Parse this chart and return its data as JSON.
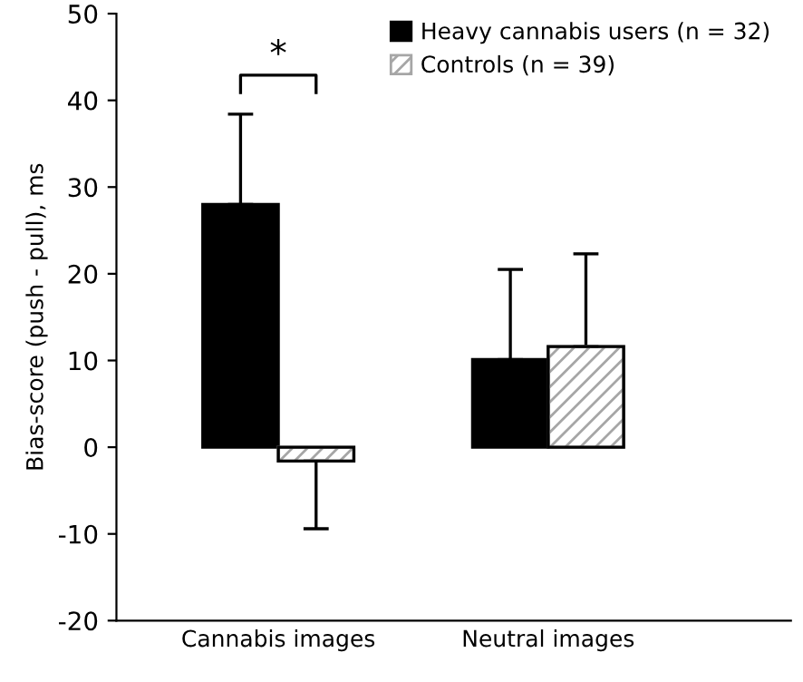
{
  "chart_data": {
    "type": "bar",
    "ylabel": "Bias-score (push - pull), ms",
    "categories": [
      "Cannabis images",
      "Neutral images"
    ],
    "series": [
      {
        "name": "Heavy cannabis users (n = 32)",
        "color": "#000000",
        "values": [
          28.0,
          10.1
        ],
        "errors": [
          [
            28.0,
            38.4
          ],
          [
            10.1,
            20.5
          ]
        ]
      },
      {
        "name": "Controls (n = 39)",
        "color": "#a6a6a6",
        "values": [
          -1.6,
          11.6
        ],
        "errors": [
          [
            -9.4,
            -1.6
          ],
          [
            11.6,
            22.3
          ]
        ]
      }
    ],
    "ylim": [
      -20,
      50
    ],
    "yticks": [
      -20,
      -10,
      0,
      10,
      20,
      30,
      40,
      50
    ],
    "grid": false,
    "legend": "top right",
    "annotations": [
      "*"
    ]
  }
}
